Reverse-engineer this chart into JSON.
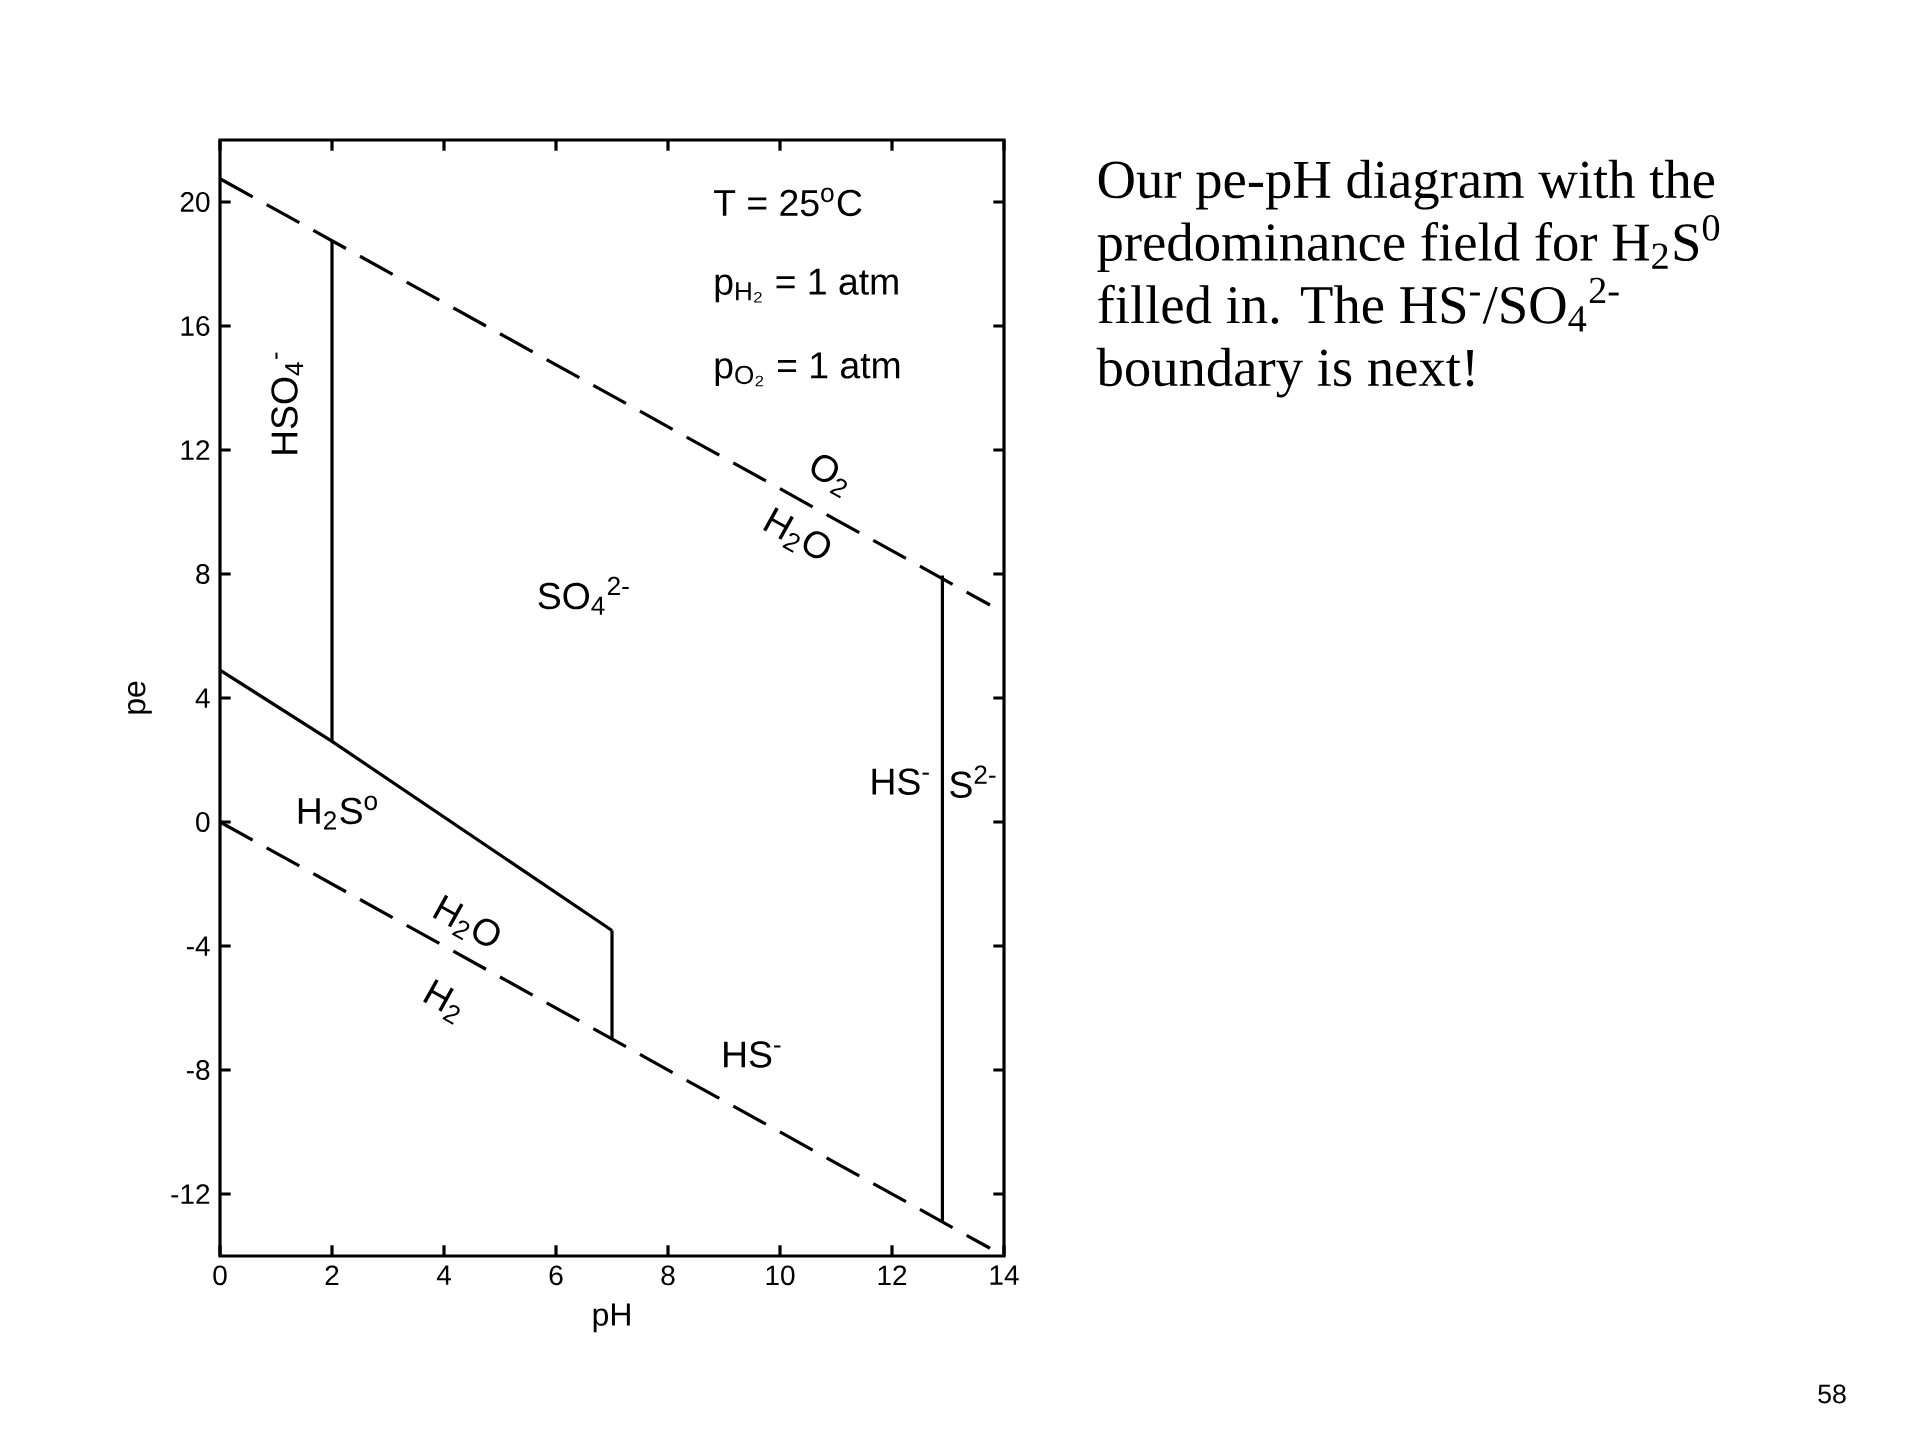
{
  "chart_data": {
    "type": "line",
    "xlabel": "pH",
    "ylabel": "pe",
    "xlim": [
      0,
      14
    ],
    "ylim": [
      -14,
      22
    ],
    "xticks": [
      0,
      2,
      4,
      6,
      8,
      10,
      12,
      14
    ],
    "yticks": [
      -12,
      -8,
      -4,
      0,
      4,
      8,
      12,
      16,
      20
    ],
    "grid": false,
    "marker": "none",
    "series": [
      {
        "color": "#000000",
        "line_style": "dashed",
        "x": [
          0,
          13.75
        ],
        "values": [
          20.75,
          7.0
        ]
      },
      {
        "color": "#000000",
        "line_style": "dashed",
        "x": [
          0,
          13.75
        ],
        "values": [
          0,
          -13.75
        ]
      },
      {
        "color": "#000000",
        "line_style": "solid",
        "x": [
          2,
          2
        ],
        "values": [
          2.6,
          18.75
        ]
      },
      {
        "color": "#000000",
        "line_style": "solid",
        "x": [
          0,
          2,
          7
        ],
        "values": [
          4.9,
          2.6,
          -3.5
        ]
      },
      {
        "color": "#000000",
        "line_style": "solid",
        "x": [
          7,
          7
        ],
        "values": [
          -3.5,
          -7.0
        ]
      },
      {
        "color": "#000000",
        "line_style": "solid",
        "x": [
          12.9,
          12.9
        ],
        "values": [
          7.95,
          -12.9
        ]
      }
    ],
    "annotations": [
      "T = 25$^{o}$C",
      "p$_{H₂}$ = 1 atm",
      "p$_{O₂}$ = 1 atm",
      "HSO$_{4}$$^{-}$",
      "O$_{2}$",
      "H$_{2}$O",
      "SO$_{4}$$^{2-}$",
      "H$_{2}$S$^{o}$",
      "H$_{2}$O",
      "H$_{2}$",
      "HS$^{-}$",
      "HS$^{-}$",
      "S$^{2-}$",
      "Our pe-pH diagram with the predominance field for H$_{2}$S$^{0}$ filled in. The HS$^{-}$/SO$_{4}$$^{2-}$ boundary is next!",
      "58"
    ]
  }
}
